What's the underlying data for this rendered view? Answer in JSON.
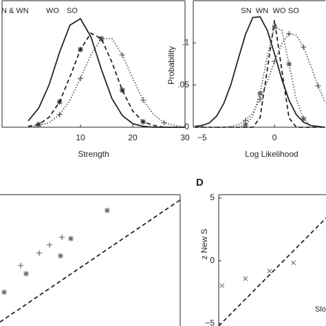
{
  "chart_data": [
    {
      "type": "line",
      "annotations": [
        "N & WN",
        "WO",
        "SO"
      ],
      "xlabel": "Strength",
      "x": [
        0,
        2,
        4,
        6,
        8,
        10,
        12,
        14,
        16,
        18,
        20,
        22,
        24,
        26,
        28,
        30
      ],
      "xlim": [
        -5,
        30
      ],
      "ylim": [
        0,
        0.14
      ],
      "xticks": [
        10,
        20,
        30
      ],
      "series": [
        {
          "style": "solid",
          "color": "#222222",
          "values": [
            0.007,
            0.021,
            0.047,
            0.083,
            0.113,
            0.12,
            0.1,
            0.064,
            0.032,
            0.013,
            0.004,
            0.001,
            0,
            0,
            0,
            0
          ]
        },
        {
          "style": "dashed",
          "color": "#222222",
          "marker": "*",
          "values": [
            0.001,
            0.003,
            0.011,
            0.028,
            0.056,
            0.086,
            0.104,
            0.098,
            0.072,
            0.041,
            0.018,
            0.006,
            0.002,
            0,
            0,
            0
          ]
        },
        {
          "style": "dotted",
          "color": "#555555",
          "marker": "+",
          "values": [
            0,
            0.002,
            0.005,
            0.014,
            0.03,
            0.054,
            0.08,
            0.098,
            0.098,
            0.08,
            0.054,
            0.03,
            0.014,
            0.005,
            0.002,
            0
          ]
        }
      ]
    },
    {
      "type": "line",
      "annotations": [
        "SN",
        "WN",
        "WO",
        "SO"
      ],
      "xlabel": "Log Likelihood",
      "ylabel": "Probability",
      "x": [
        -5.5,
        -5,
        -4.5,
        -4,
        -3.5,
        -3,
        -2.5,
        -2,
        -1.5,
        -1,
        -0.5,
        0,
        0.5,
        1,
        1.5,
        2,
        2.5,
        3,
        3.5
      ],
      "xlim": [
        -5.6,
        3.5
      ],
      "ylim": [
        0,
        0.15
      ],
      "xticks": [
        {
          "value": -5,
          "label": "−5"
        },
        0
      ],
      "yticks": [
        0,
        {
          "value": 0.05,
          "label": ".05"
        },
        {
          "value": 0.1,
          "label": ".1"
        }
      ],
      "series": [
        {
          "style": "solid",
          "color": "#222222",
          "values": [
            0.001,
            0.002,
            0.005,
            0.013,
            0.028,
            0.051,
            0.081,
            0.11,
            0.13,
            0.131,
            0.115,
            0.087,
            0.057,
            0.032,
            0.015,
            0.006,
            0.002,
            0.001,
            0
          ]
        },
        {
          "style": "dashed",
          "color": "#222222",
          "values": [
            0,
            0,
            0,
            0,
            0,
            0,
            0,
            0,
            0,
            0.011,
            0.068,
            0.127,
            0.068,
            0.011,
            0,
            0,
            0,
            0,
            0
          ]
        },
        {
          "style": "dotted",
          "color": "#555555",
          "marker": "*",
          "values": [
            0,
            0,
            0,
            0,
            0,
            0,
            0,
            0.003,
            0.013,
            0.04,
            0.084,
            0.119,
            0.115,
            0.075,
            0.033,
            0.01,
            0.002,
            0,
            0
          ]
        },
        {
          "style": "dotted",
          "color": "#555555",
          "marker": "+",
          "values": [
            0,
            0,
            0,
            0,
            0,
            0.001,
            0.003,
            0.008,
            0.017,
            0.033,
            0.054,
            0.078,
            0.099,
            0.111,
            0.109,
            0.095,
            0.073,
            0.049,
            0.029
          ]
        }
      ]
    },
    {
      "type": "scatter",
      "xlim": [
        0,
        10
      ],
      "ylim": [
        0,
        10
      ],
      "series": [
        {
          "style": "dashed",
          "color": "#222222",
          "x": [
            0,
            10
          ],
          "values": [
            0.3,
            9.6
          ]
        },
        {
          "style": "none",
          "color": "#666666",
          "marker": "*",
          "x": [
            5.95,
            3.93,
            3.36,
            1.45,
            0.23
          ],
          "values": [
            8.8,
            6.65,
            5.34,
            3.98,
            2.57
          ]
        },
        {
          "style": "none",
          "color": "#666666",
          "marker": "+",
          "x": [
            3.44,
            2.75,
            2.18,
            1.15
          ],
          "values": [
            6.75,
            6.18,
            5.55,
            4.61
          ]
        }
      ]
    },
    {
      "type": "scatter",
      "panel_label": "D",
      "ylabel": "z New S",
      "annotations": [
        "Slo"
      ],
      "xlim": [
        -5.2,
        3.4
      ],
      "ylim": [
        -5.2,
        5.27
      ],
      "yticks": [
        5,
        0,
        {
          "value": -5,
          "label": "−5"
        }
      ],
      "series": [
        {
          "style": "dashed",
          "color": "#222222",
          "x": [
            -5.2,
            3.4
          ],
          "values": [
            -5.2,
            3.4
          ]
        },
        {
          "style": "none",
          "color": "#777777",
          "marker": "x",
          "x": [
            -4.93,
            -3.06,
            -1.13,
            0.79
          ],
          "values": [
            -1.98,
            -1.43,
            -0.82,
            -0.16
          ]
        }
      ]
    }
  ]
}
